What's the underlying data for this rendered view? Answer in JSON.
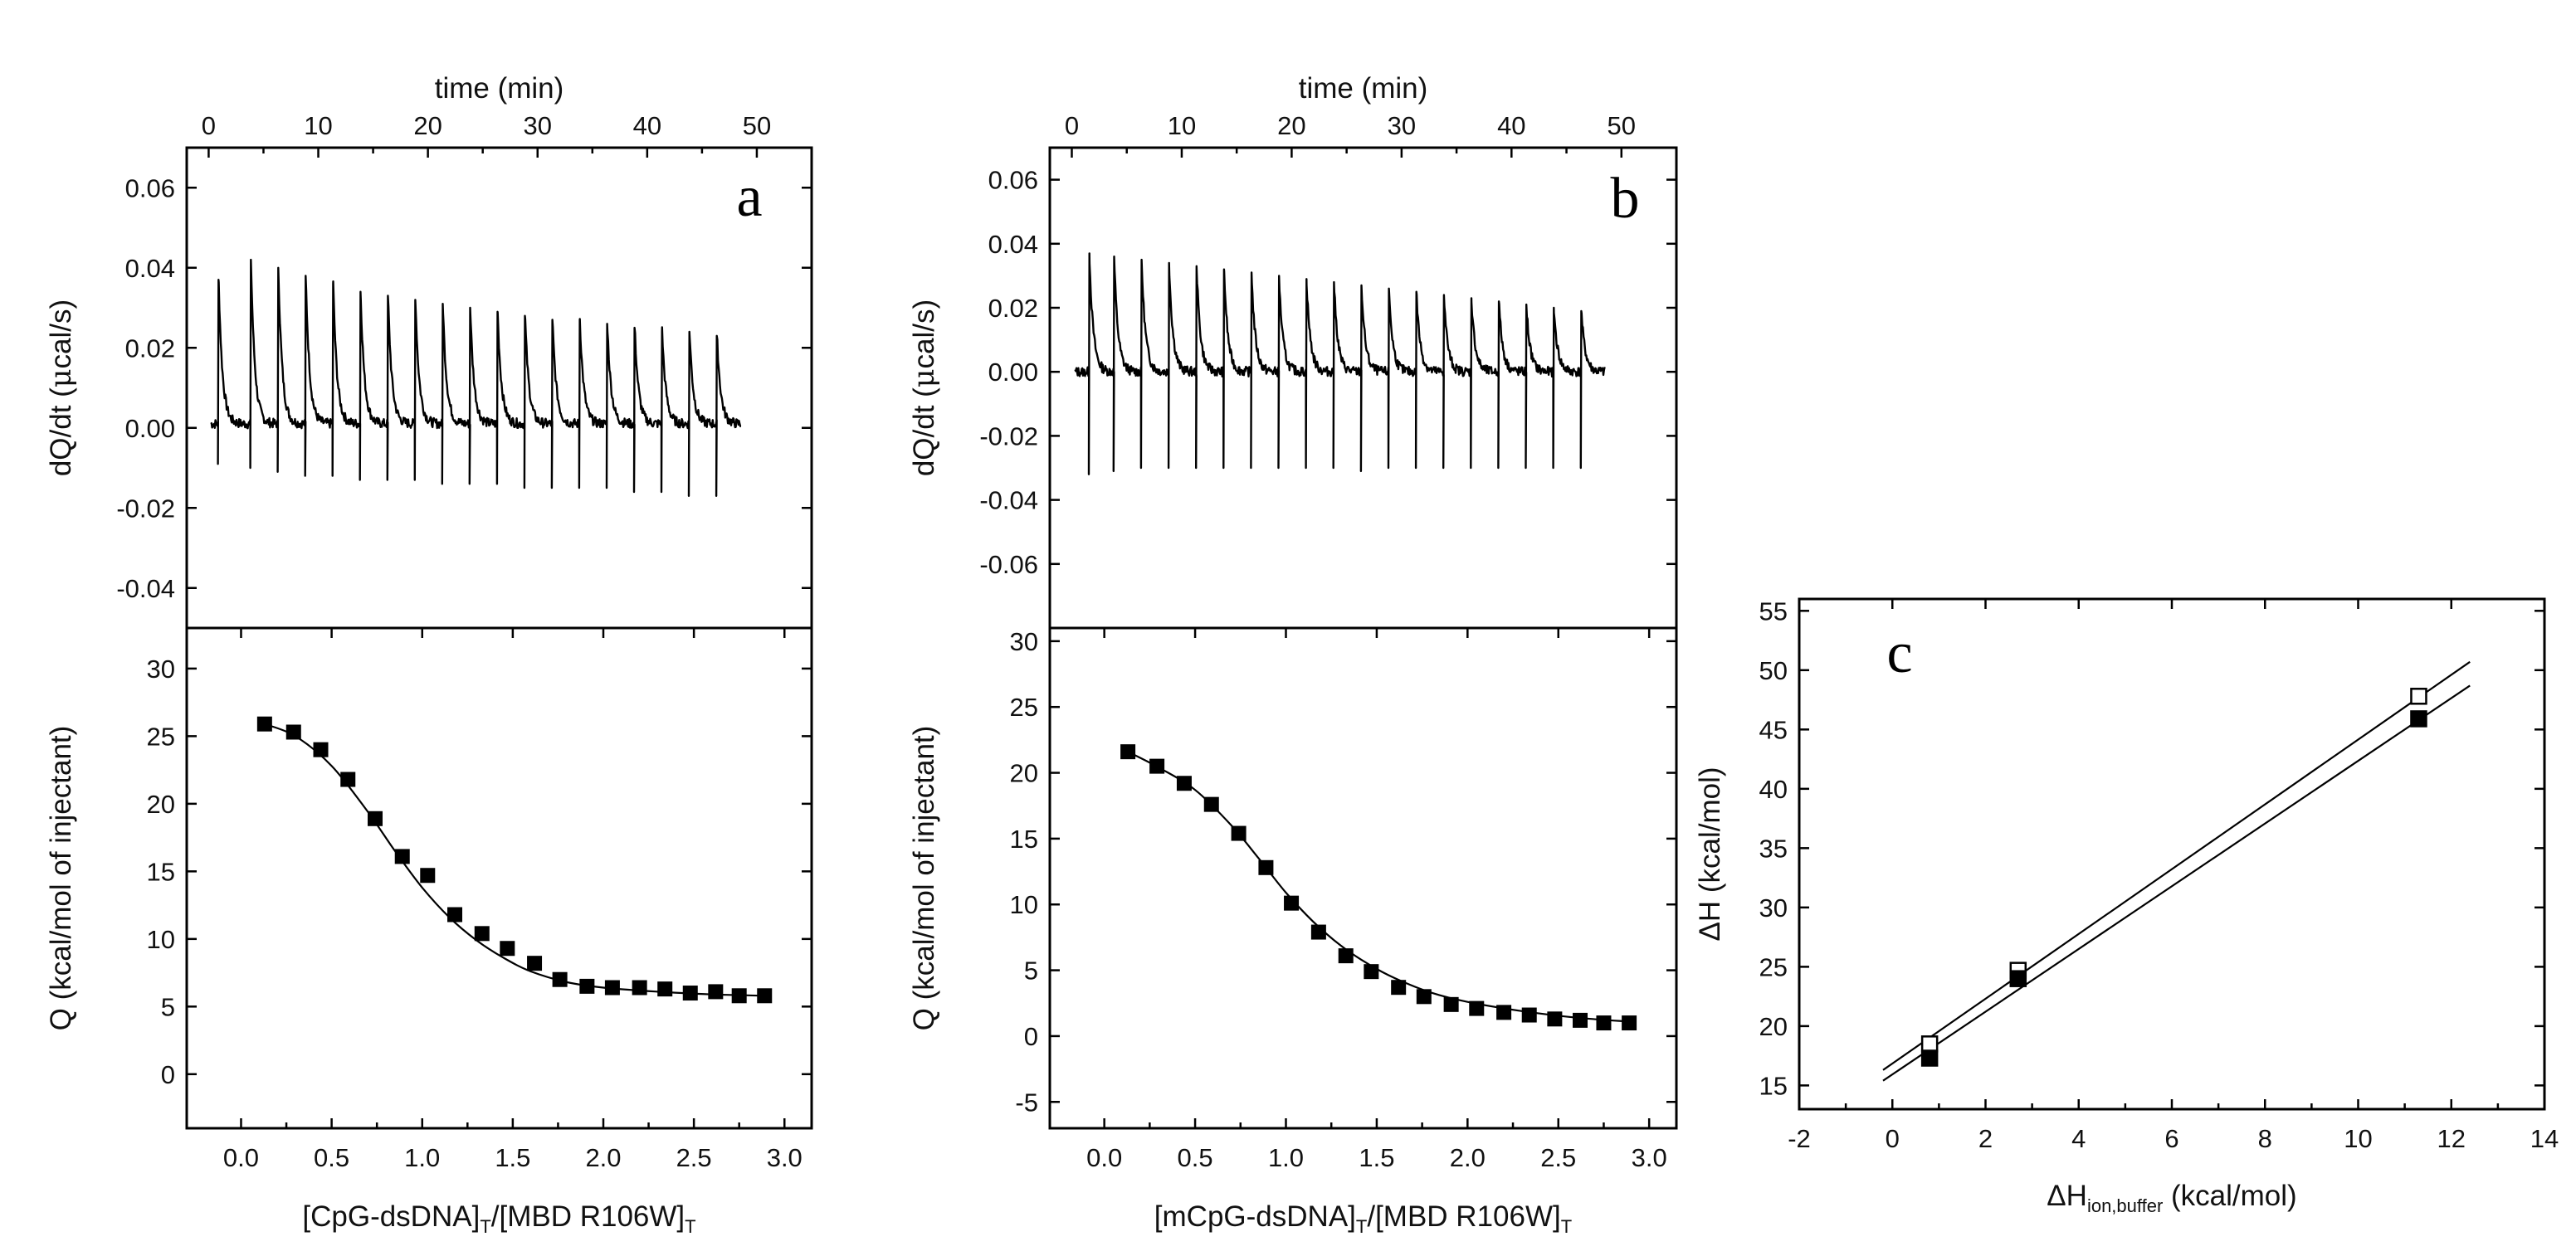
{
  "figure": {
    "panel_letters": [
      "a",
      "b",
      "c"
    ]
  },
  "chart_data": [
    {
      "id": "a",
      "type": "line",
      "panel": "a",
      "top": {
        "xlabel": "time (min)",
        "xlim": [
          -2,
          55
        ],
        "xticks": [
          0,
          10,
          20,
          30,
          40,
          50
        ],
        "ylabel_parts": [
          "dQ/dt (",
          "μ",
          "cal/s)"
        ],
        "ylim": [
          -0.05,
          0.07
        ],
        "yticks": [
          -0.04,
          -0.02,
          0.0,
          0.02,
          0.04,
          0.06
        ],
        "tick_decimals": 2,
        "baseline": 0.001,
        "noise": 0.0012,
        "trace_start": 0.2,
        "trace_end": 48.6,
        "series": [
          {
            "name": "raw ITC thermogram",
            "injection_times": [
              0.9,
              3.85,
              6.35,
              8.85,
              11.35,
              13.85,
              16.35,
              18.85,
              21.35,
              23.85,
              26.35,
              28.85,
              31.35,
              33.85,
              36.35,
              38.85,
              41.35,
              43.85,
              46.35
            ],
            "peak_heights": [
              0.037,
              0.042,
              0.04,
              0.038,
              0.036,
              0.034,
              0.033,
              0.032,
              0.031,
              0.03,
              0.029,
              0.028,
              0.027,
              0.027,
              0.026,
              0.025,
              0.024,
              0.024,
              0.023
            ],
            "trough_depths": [
              -0.009,
              -0.01,
              -0.011,
              -0.012,
              -0.012,
              -0.013,
              -0.013,
              -0.013,
              -0.014,
              -0.014,
              -0.014,
              -0.015,
              -0.015,
              -0.015,
              -0.015,
              -0.016,
              -0.016,
              -0.017,
              -0.017
            ]
          }
        ]
      },
      "bottom": {
        "xlabel_parts": [
          "[CpG-dsDNA]",
          "T",
          "/[MBD R106W]",
          "T"
        ],
        "ylabel": "Q (kcal/mol of injectant)",
        "xlim": [
          -0.3,
          3.15
        ],
        "xticks": [
          0.0,
          0.5,
          1.0,
          1.5,
          2.0,
          2.5,
          3.0
        ],
        "ylim": [
          -4,
          33
        ],
        "yticks": [
          0,
          5,
          10,
          15,
          20,
          25,
          30
        ],
        "series": [
          {
            "name": "integrated heats",
            "marker": "filled-square",
            "x": [
              0.13,
              0.29,
              0.44,
              0.59,
              0.74,
              0.89,
              1.03,
              1.18,
              1.33,
              1.47,
              1.62,
              1.76,
              1.91,
              2.05,
              2.2,
              2.34,
              2.48,
              2.62,
              2.75,
              2.89
            ],
            "y": [
              25.9,
              25.3,
              24.0,
              21.8,
              18.9,
              16.1,
              14.7,
              11.8,
              10.4,
              9.3,
              8.2,
              7.0,
              6.5,
              6.4,
              6.4,
              6.3,
              6.0,
              6.1,
              5.8,
              5.8
            ],
            "fit": {
              "x": [
                0.13,
                0.3,
                0.5,
                0.7,
                0.85,
                1.0,
                1.15,
                1.3,
                1.45,
                1.6,
                1.8,
                2.0,
                2.3,
                2.6,
                2.89
              ],
              "y": [
                25.9,
                25.0,
                22.8,
                19.4,
                16.5,
                13.8,
                11.6,
                9.9,
                8.6,
                7.6,
                6.8,
                6.4,
                6.1,
                5.9,
                5.8
              ]
            }
          }
        ]
      }
    },
    {
      "id": "b",
      "type": "line",
      "panel": "b",
      "top": {
        "xlabel": "time (min)",
        "xlim": [
          -2,
          55
        ],
        "xticks": [
          0,
          10,
          20,
          30,
          40,
          50
        ],
        "ylabel_parts": [
          "dQ/dt (",
          "μ",
          "cal/s)"
        ],
        "ylim": [
          -0.08,
          0.07
        ],
        "yticks": [
          -0.06,
          -0.04,
          -0.02,
          0.0,
          0.02,
          0.04,
          0.06
        ],
        "tick_decimals": 2,
        "baseline": 0.0,
        "noise": 0.0015,
        "trace_start": 0.3,
        "trace_end": 48.5,
        "series": [
          {
            "name": "raw ITC thermogram",
            "injection_times": [
              1.6,
              3.85,
              6.35,
              8.85,
              11.35,
              13.85,
              16.35,
              18.85,
              21.35,
              23.85,
              26.35,
              28.85,
              31.35,
              33.85,
              36.35,
              38.85,
              41.35,
              43.85,
              46.35
            ],
            "peak_heights": [
              0.037,
              0.036,
              0.035,
              0.034,
              0.033,
              0.032,
              0.031,
              0.03,
              0.029,
              0.028,
              0.027,
              0.026,
              0.025,
              0.024,
              0.023,
              0.022,
              0.021,
              0.02,
              0.019
            ],
            "trough_depths": [
              -0.032,
              -0.031,
              -0.03,
              -0.03,
              -0.03,
              -0.03,
              -0.03,
              -0.03,
              -0.03,
              -0.03,
              -0.031,
              -0.03,
              -0.03,
              -0.03,
              -0.03,
              -0.03,
              -0.03,
              -0.03,
              -0.03
            ]
          }
        ]
      },
      "bottom": {
        "xlabel_parts": [
          "[mCpG-dsDNA]",
          "T",
          "/[MBD R106W]",
          "T"
        ],
        "ylabel": "Q (kcal/mol of injectant)",
        "xlim": [
          -0.3,
          3.15
        ],
        "xticks": [
          0.0,
          0.5,
          1.0,
          1.5,
          2.0,
          2.5,
          3.0
        ],
        "ylim": [
          -7,
          31
        ],
        "yticks": [
          -5,
          0,
          5,
          10,
          15,
          20,
          25,
          30
        ],
        "series": [
          {
            "name": "integrated heats",
            "marker": "filled-square",
            "x": [
              0.13,
              0.29,
              0.44,
              0.59,
              0.74,
              0.89,
              1.03,
              1.18,
              1.33,
              1.47,
              1.62,
              1.76,
              1.91,
              2.05,
              2.2,
              2.34,
              2.48,
              2.62,
              2.75,
              2.89
            ],
            "y": [
              21.6,
              20.5,
              19.2,
              17.6,
              15.4,
              12.8,
              10.1,
              7.9,
              6.1,
              4.9,
              3.7,
              3.0,
              2.4,
              2.1,
              1.8,
              1.6,
              1.3,
              1.2,
              1.0,
              1.0
            ],
            "fit": {
              "x": [
                0.13,
                0.3,
                0.5,
                0.7,
                0.85,
                1.0,
                1.15,
                1.3,
                1.45,
                1.6,
                1.8,
                2.0,
                2.3,
                2.6,
                2.89
              ],
              "y": [
                21.6,
                20.4,
                18.7,
                16.0,
                13.5,
                10.9,
                8.7,
                6.9,
                5.5,
                4.4,
                3.3,
                2.6,
                1.9,
                1.4,
                1.1
              ]
            }
          }
        ]
      }
    },
    {
      "id": "c",
      "type": "scatter",
      "panel": "c",
      "xlabel_parts": [
        "ΔH",
        "ion,buffer",
        " (kcal/mol)"
      ],
      "ylabel": "ΔH (kcal/mol)",
      "xlim": [
        -2,
        14
      ],
      "xticks": [
        -2,
        0,
        2,
        4,
        6,
        8,
        10,
        12,
        14
      ],
      "ylim": [
        13,
        56
      ],
      "yticks": [
        15,
        20,
        25,
        30,
        35,
        40,
        45,
        50,
        55
      ],
      "series": [
        {
          "name": "open squares",
          "marker": "open-square",
          "x": [
            0.8,
            2.7,
            11.3
          ],
          "y": [
            18.5,
            24.7,
            47.8
          ],
          "fit": {
            "x": [
              -0.2,
              12.4
            ],
            "y": [
              16.3,
              50.7
            ]
          }
        },
        {
          "name": "filled squares",
          "marker": "filled-square",
          "x": [
            0.8,
            2.7,
            11.3
          ],
          "y": [
            17.3,
            24.0,
            45.9
          ],
          "fit": {
            "x": [
              -0.2,
              12.4
            ],
            "y": [
              15.4,
              48.7
            ]
          }
        }
      ]
    }
  ]
}
